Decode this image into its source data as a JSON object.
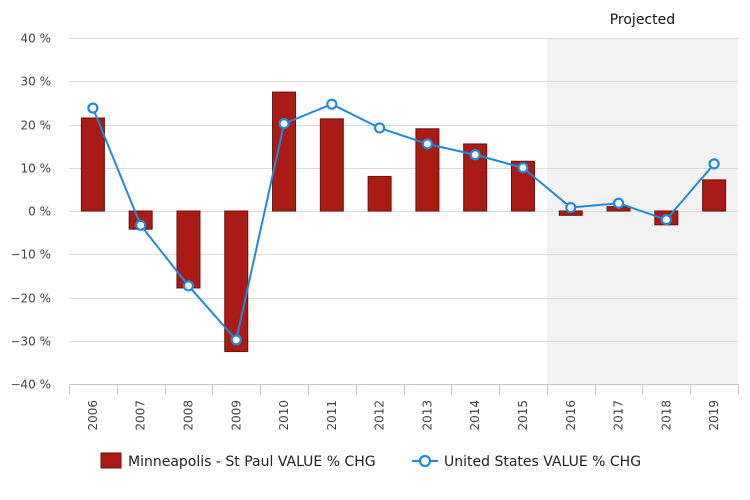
{
  "chart_data": {
    "type": "bar",
    "categories": [
      "2006",
      "2007",
      "2008",
      "2009",
      "2010",
      "2011",
      "2012",
      "2013",
      "2014",
      "2015",
      "2016",
      "2017",
      "2018",
      "2019"
    ],
    "series": [
      {
        "name": "Minneapolis - St Paul VALUE % CHG",
        "type": "bar",
        "color": "#a91b14",
        "values": [
          21.5,
          -4.2,
          -17.8,
          -32.5,
          27.5,
          21.3,
          8.0,
          19.0,
          15.5,
          11.5,
          -1.0,
          1.0,
          -3.2,
          7.2
        ]
      },
      {
        "name": "United States VALUE % CHG",
        "type": "line",
        "color": "#1f8ad8",
        "values": [
          23.8,
          -3.3,
          -17.3,
          -29.8,
          20.2,
          24.7,
          19.2,
          15.5,
          13.0,
          10.0,
          0.8,
          1.8,
          -2.0,
          10.9
        ]
      }
    ],
    "ylim": [
      -40,
      40
    ],
    "yticks": [
      -40,
      -30,
      -20,
      -10,
      0,
      10,
      20,
      30,
      40
    ],
    "ytick_labels": [
      "−40 %",
      "−30 %",
      "−20 %",
      "−10 %",
      "0 %",
      "10 %",
      "20 %",
      "30 %",
      "40 %"
    ],
    "projected_band": {
      "label": "Projected",
      "from_category": "2016",
      "to_category": "2019"
    },
    "grid": true,
    "legend_position": "bottom"
  }
}
